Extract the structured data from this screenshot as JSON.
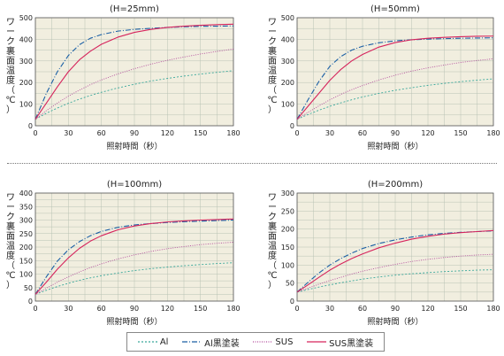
{
  "colors": {
    "al": "#3aa89b",
    "al_black": "#1a5fa5",
    "sus": "#b24a9b",
    "sus_black": "#d6245c",
    "plot_bg": "#f1eedf",
    "grid": "#b9c2b4"
  },
  "legend": [
    {
      "key": "al",
      "label": "Al",
      "dash": "2,2"
    },
    {
      "key": "al_black",
      "label": "Al黒塗装",
      "dash": "6,2,1,2"
    },
    {
      "key": "sus",
      "label": "SUS",
      "dash": "1,1.5"
    },
    {
      "key": "sus_black",
      "label": "SUS黒塗装",
      "dash": ""
    }
  ],
  "chart_data": [
    {
      "type": "line",
      "title": "(H=25mm)",
      "xlabel": "照射時間（秒）",
      "ylabel": "ワーク裏面温度（℃）",
      "xlim": [
        0,
        180
      ],
      "ylim": [
        0,
        500
      ],
      "xticks": [
        0,
        30,
        60,
        90,
        120,
        150,
        180
      ],
      "yticks": [
        0,
        100,
        200,
        300,
        400,
        500
      ],
      "x": [
        0,
        10,
        20,
        30,
        40,
        50,
        60,
        75,
        90,
        105,
        120,
        135,
        150,
        165,
        180
      ],
      "series": [
        {
          "key": "al",
          "name": "Al",
          "values": [
            30,
            58,
            82,
            104,
            123,
            140,
            155,
            175,
            192,
            207,
            219,
            230,
            239,
            247,
            255
          ]
        },
        {
          "key": "al_black",
          "name": "Al黒塗装",
          "values": [
            30,
            150,
            250,
            325,
            375,
            405,
            422,
            438,
            446,
            451,
            455,
            458,
            460,
            461,
            462
          ]
        },
        {
          "key": "sus",
          "name": "SUS",
          "values": [
            30,
            70,
            105,
            137,
            165,
            190,
            212,
            240,
            264,
            285,
            303,
            318,
            332,
            344,
            355
          ]
        },
        {
          "key": "sus_black",
          "name": "SUS黒塗装",
          "values": [
            30,
            105,
            180,
            250,
            305,
            345,
            377,
            410,
            432,
            446,
            455,
            461,
            465,
            468,
            470
          ]
        }
      ]
    },
    {
      "type": "line",
      "title": "(H=50mm)",
      "xlabel": "照射時間（秒）",
      "ylabel": "ワーク裏面温度（℃）",
      "xlim": [
        0,
        180
      ],
      "ylim": [
        0,
        500
      ],
      "xticks": [
        0,
        30,
        60,
        90,
        120,
        150,
        180
      ],
      "yticks": [
        0,
        100,
        200,
        300,
        400,
        500
      ],
      "x": [
        0,
        10,
        20,
        30,
        40,
        50,
        60,
        75,
        90,
        105,
        120,
        135,
        150,
        165,
        180
      ],
      "series": [
        {
          "key": "al",
          "name": "Al",
          "values": [
            30,
            52,
            72,
            90,
            106,
            120,
            133,
            150,
            164,
            176,
            187,
            196,
            204,
            211,
            217
          ]
        },
        {
          "key": "al_black",
          "name": "Al黒塗装",
          "values": [
            30,
            120,
            205,
            275,
            320,
            350,
            368,
            384,
            393,
            398,
            401,
            403,
            405,
            406,
            407
          ]
        },
        {
          "key": "sus",
          "name": "SUS",
          "values": [
            30,
            62,
            92,
            120,
            145,
            167,
            186,
            212,
            234,
            253,
            268,
            281,
            293,
            302,
            310
          ]
        },
        {
          "key": "sus_black",
          "name": "SUS黒塗装",
          "values": [
            30,
            90,
            150,
            210,
            260,
            300,
            330,
            364,
            385,
            398,
            405,
            409,
            412,
            414,
            415
          ]
        }
      ]
    },
    {
      "type": "line",
      "title": "(H=100mm)",
      "xlabel": "照射時間（秒）",
      "ylabel": "ワーク裏面温度（℃）",
      "xlim": [
        0,
        180
      ],
      "ylim": [
        0,
        400
      ],
      "xticks": [
        0,
        30,
        60,
        90,
        120,
        150,
        180
      ],
      "yticks": [
        0,
        50,
        100,
        150,
        200,
        250,
        300,
        350,
        400
      ],
      "x": [
        0,
        10,
        20,
        30,
        40,
        50,
        60,
        75,
        90,
        105,
        120,
        135,
        150,
        165,
        180
      ],
      "series": [
        {
          "key": "al",
          "name": "Al",
          "values": [
            25,
            40,
            54,
            66,
            77,
            86,
            94,
            104,
            113,
            120,
            126,
            131,
            135,
            139,
            142
          ]
        },
        {
          "key": "al_black",
          "name": "Al黒塗装",
          "values": [
            25,
            90,
            148,
            190,
            220,
            242,
            258,
            273,
            282,
            287,
            291,
            294,
            296,
            298,
            300
          ]
        },
        {
          "key": "sus",
          "name": "SUS",
          "values": [
            25,
            48,
            70,
            90,
            108,
            124,
            138,
            156,
            171,
            184,
            194,
            202,
            209,
            214,
            218
          ]
        },
        {
          "key": "sus_black",
          "name": "SUS黒塗装",
          "values": [
            25,
            70,
            118,
            160,
            195,
            222,
            242,
            264,
            278,
            287,
            293,
            297,
            300,
            302,
            304
          ]
        }
      ]
    },
    {
      "type": "line",
      "title": "(H=200mm)",
      "xlabel": "照射時間（秒）",
      "ylabel": "ワーク裏面温度（℃）",
      "xlim": [
        0,
        180
      ],
      "ylim": [
        0,
        300
      ],
      "xticks": [
        0,
        30,
        60,
        90,
        120,
        150,
        180
      ],
      "yticks": [
        0,
        50,
        100,
        150,
        200,
        250,
        300
      ],
      "x": [
        0,
        10,
        20,
        30,
        40,
        50,
        60,
        75,
        90,
        105,
        120,
        135,
        150,
        165,
        180
      ],
      "series": [
        {
          "key": "al",
          "name": "Al",
          "values": [
            25,
            32,
            39,
            45,
            51,
            56,
            61,
            67,
            72,
            76,
            79,
            82,
            84,
            86,
            87
          ]
        },
        {
          "key": "al_black",
          "name": "Al黒塗装",
          "values": [
            25,
            52,
            78,
            100,
            118,
            133,
            146,
            160,
            170,
            178,
            184,
            188,
            191,
            193,
            195
          ]
        },
        {
          "key": "sus",
          "name": "SUS",
          "values": [
            25,
            36,
            47,
            57,
            66,
            75,
            83,
            93,
            102,
            110,
            116,
            121,
            125,
            128,
            130
          ]
        },
        {
          "key": "sus_black",
          "name": "SUS黒塗装",
          "values": [
            25,
            45,
            66,
            86,
            103,
            118,
            131,
            148,
            161,
            172,
            180,
            186,
            190,
            193,
            196
          ]
        }
      ]
    }
  ]
}
